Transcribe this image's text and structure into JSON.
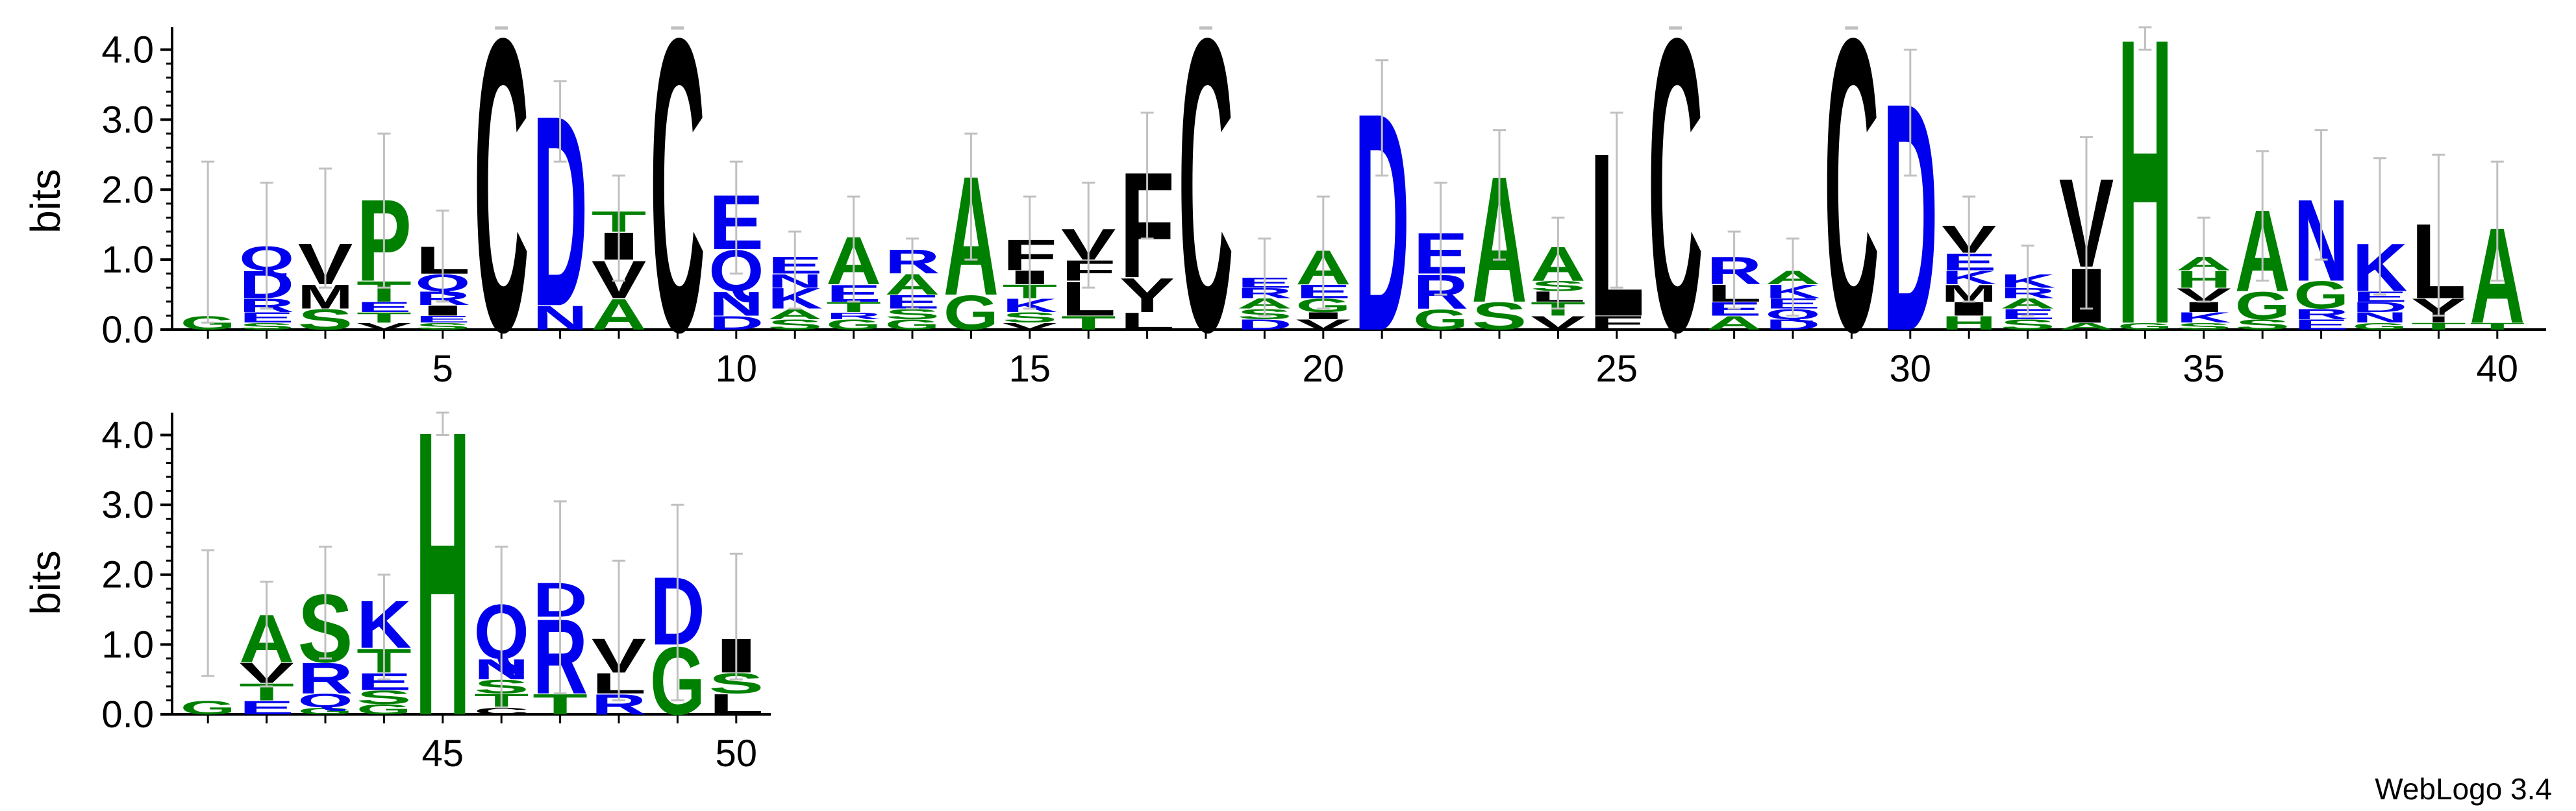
{
  "app": {
    "credit": "WebLogo 3.4"
  },
  "colors": {
    "blue": "#0000ee",
    "green": "#008000",
    "black": "#000000",
    "errorbar": "#c0c0c0"
  },
  "chart_data": [
    {
      "type": "sequence_logo",
      "ylabel": "bits",
      "ylim": [
        0,
        4.32
      ],
      "yticks": [
        "0.0",
        "1.0",
        "2.0",
        "3.0",
        "4.0"
      ],
      "xticks": [
        "5",
        "10",
        "15",
        "20",
        "25",
        "30",
        "35",
        "40"
      ],
      "positions": [
        {
          "pos": 1,
          "err": [
            0.1,
            2.4
          ],
          "letters": [
            [
              "G",
              0.2
            ]
          ]
        },
        {
          "pos": 2,
          "err": [
            0.3,
            2.1
          ],
          "letters": [
            [
              "S",
              0.1
            ],
            [
              "E",
              0.15
            ],
            [
              "R",
              0.2
            ],
            [
              "D",
              0.4
            ],
            [
              "Q",
              0.35
            ]
          ]
        },
        {
          "pos": 3,
          "err": [
            0.6,
            2.3
          ],
          "letters": [
            [
              "S",
              0.3
            ],
            [
              "M",
              0.35
            ],
            [
              "V",
              0.6
            ]
          ]
        },
        {
          "pos": 4,
          "err": [
            0.6,
            2.8
          ],
          "letters": [
            [
              "V",
              0.1
            ],
            [
              "T",
              0.15
            ],
            [
              "E",
              0.15
            ],
            [
              "T",
              0.3
            ],
            [
              "P",
              1.2
            ]
          ]
        },
        {
          "pos": 5,
          "err": [
            0.4,
            1.7
          ],
          "letters": [
            [
              "S",
              0.1
            ],
            [
              "E",
              0.1
            ],
            [
              "I",
              0.15
            ],
            [
              "R",
              0.2
            ],
            [
              "Q",
              0.25
            ],
            [
              "L",
              0.4
            ]
          ]
        },
        {
          "pos": 6,
          "err": [
            4.3,
            4.32
          ],
          "letters": [
            [
              "C",
              4.3
            ]
          ]
        },
        {
          "pos": 7,
          "err": [
            2.4,
            3.55
          ],
          "letters": [
            [
              "N",
              0.35
            ],
            [
              "D",
              2.8
            ]
          ]
        },
        {
          "pos": 8,
          "err": [
            0.7,
            2.2
          ],
          "letters": [
            [
              "A",
              0.45
            ],
            [
              "V",
              0.55
            ],
            [
              "I",
              0.4
            ],
            [
              "T",
              0.3
            ]
          ]
        },
        {
          "pos": 9,
          "err": [
            4.3,
            4.32
          ],
          "letters": [
            [
              "C",
              4.3
            ]
          ]
        },
        {
          "pos": 10,
          "err": [
            0.8,
            2.4
          ],
          "letters": [
            [
              "D",
              0.2
            ],
            [
              "N",
              0.35
            ],
            [
              "Q",
              0.6
            ],
            [
              "E",
              0.8
            ]
          ]
        },
        {
          "pos": 11,
          "err": [
            0.3,
            1.4
          ],
          "letters": [
            [
              "S",
              0.15
            ],
            [
              "A",
              0.15
            ],
            [
              "K",
              0.3
            ],
            [
              "N",
              0.2
            ],
            [
              "E",
              0.25
            ]
          ]
        },
        {
          "pos": 12,
          "err": [
            0.4,
            1.9
          ],
          "letters": [
            [
              "G",
              0.15
            ],
            [
              "R",
              0.1
            ],
            [
              "T",
              0.15
            ],
            [
              "E",
              0.25
            ],
            [
              "A",
              0.7
            ]
          ]
        },
        {
          "pos": 13,
          "err": [
            0.3,
            1.3
          ],
          "letters": [
            [
              "G",
              0.15
            ],
            [
              "S",
              0.15
            ],
            [
              "E",
              0.2
            ],
            [
              "A",
              0.3
            ],
            [
              "R",
              0.35
            ]
          ]
        },
        {
          "pos": 14,
          "err": [
            1.0,
            2.8
          ],
          "letters": [
            [
              "G",
              0.5
            ],
            [
              "A",
              1.75
            ]
          ]
        },
        {
          "pos": 15,
          "err": [
            0.3,
            1.9
          ],
          "letters": [
            [
              "V",
              0.1
            ],
            [
              "S",
              0.15
            ],
            [
              "K",
              0.2
            ],
            [
              "T",
              0.2
            ],
            [
              "I",
              0.2
            ],
            [
              "F",
              0.45
            ]
          ]
        },
        {
          "pos": 16,
          "err": [
            0.6,
            2.1
          ],
          "letters": [
            [
              "T",
              0.2
            ],
            [
              "L",
              0.5
            ],
            [
              "F",
              0.3
            ],
            [
              "V",
              0.45
            ]
          ]
        },
        {
          "pos": 17,
          "err": [
            1.3,
            3.1
          ],
          "letters": [
            [
              "L",
              0.25
            ],
            [
              "Y",
              0.5
            ],
            [
              "F",
              1.55
            ]
          ]
        },
        {
          "pos": 18,
          "err": [
            4.3,
            4.32
          ],
          "letters": [
            [
              "C",
              4.3
            ]
          ]
        },
        {
          "pos": 19,
          "err": [
            0.2,
            1.3
          ],
          "letters": [
            [
              "D",
              0.15
            ],
            [
              "S",
              0.15
            ],
            [
              "A",
              0.15
            ],
            [
              "R",
              0.15
            ],
            [
              "E",
              0.15
            ]
          ]
        },
        {
          "pos": 20,
          "err": [
            0.3,
            1.9
          ],
          "letters": [
            [
              "V",
              0.15
            ],
            [
              "I",
              0.1
            ],
            [
              "G",
              0.2
            ],
            [
              "E",
              0.2
            ],
            [
              "A",
              0.5
            ]
          ]
        },
        {
          "pos": 21,
          "err": [
            2.2,
            3.85
          ],
          "letters": [
            [
              "D",
              3.2
            ]
          ]
        },
        {
          "pos": 22,
          "err": [
            0.5,
            2.1
          ],
          "letters": [
            [
              "G",
              0.3
            ],
            [
              "R",
              0.5
            ],
            [
              "E",
              0.6
            ]
          ]
        },
        {
          "pos": 23,
          "err": [
            1.0,
            2.85
          ],
          "letters": [
            [
              "S",
              0.4
            ],
            [
              "A",
              1.85
            ]
          ]
        },
        {
          "pos": 24,
          "err": [
            0.3,
            1.6
          ],
          "letters": [
            [
              "V",
              0.2
            ],
            [
              "T",
              0.2
            ],
            [
              "L",
              0.15
            ],
            [
              "S",
              0.15
            ],
            [
              "A",
              0.5
            ]
          ]
        },
        {
          "pos": 25,
          "err": [
            0.6,
            3.1
          ],
          "letters": [
            [
              "F",
              0.2
            ],
            [
              "L",
              2.4
            ]
          ]
        },
        {
          "pos": 26,
          "err": [
            4.3,
            4.32
          ],
          "letters": [
            [
              "C",
              4.3
            ]
          ]
        },
        {
          "pos": 27,
          "err": [
            0.3,
            1.4
          ],
          "letters": [
            [
              "A",
              0.2
            ],
            [
              "E",
              0.2
            ],
            [
              "L",
              0.25
            ],
            [
              "R",
              0.4
            ]
          ]
        },
        {
          "pos": 28,
          "err": [
            0.2,
            1.3
          ],
          "letters": [
            [
              "D",
              0.15
            ],
            [
              "Q",
              0.15
            ],
            [
              "E",
              0.15
            ],
            [
              "K",
              0.2
            ],
            [
              "A",
              0.2
            ]
          ]
        },
        {
          "pos": 29,
          "err": [
            4.3,
            4.32
          ],
          "letters": [
            [
              "C",
              4.3
            ]
          ]
        },
        {
          "pos": 30,
          "err": [
            2.2,
            4.0
          ],
          "letters": [
            [
              "D",
              3.35
            ]
          ]
        },
        {
          "pos": 31,
          "err": [
            0.4,
            1.9
          ],
          "letters": [
            [
              "H",
              0.2
            ],
            [
              "I",
              0.2
            ],
            [
              "M",
              0.25
            ],
            [
              "K",
              0.2
            ],
            [
              "E",
              0.25
            ],
            [
              "V",
              0.4
            ]
          ]
        },
        {
          "pos": 32,
          "err": [
            0.2,
            1.2
          ],
          "letters": [
            [
              "S",
              0.15
            ],
            [
              "E",
              0.15
            ],
            [
              "A",
              0.15
            ],
            [
              "R",
              0.15
            ],
            [
              "K",
              0.2
            ]
          ]
        },
        {
          "pos": 33,
          "err": [
            0.3,
            2.75
          ],
          "letters": [
            [
              "A",
              0.1
            ],
            [
              "I",
              0.8
            ],
            [
              "V",
              1.3
            ]
          ]
        },
        {
          "pos": 34,
          "err": [
            4.0,
            4.32
          ],
          "letters": [
            [
              "G",
              0.1
            ],
            [
              "H",
              4.2
            ]
          ]
        },
        {
          "pos": 35,
          "err": [
            0.4,
            1.6
          ],
          "letters": [
            [
              "S",
              0.1
            ],
            [
              "K",
              0.15
            ],
            [
              "I",
              0.15
            ],
            [
              "V",
              0.2
            ],
            [
              "H",
              0.25
            ],
            [
              "A",
              0.2
            ]
          ]
        },
        {
          "pos": 36,
          "err": [
            0.7,
            2.55
          ],
          "letters": [
            [
              "S",
              0.15
            ],
            [
              "G",
              0.4
            ],
            [
              "A",
              1.2
            ]
          ]
        },
        {
          "pos": 37,
          "err": [
            1.0,
            2.85
          ],
          "letters": [
            [
              "E",
              0.15
            ],
            [
              "R",
              0.15
            ],
            [
              "G",
              0.4
            ],
            [
              "N",
              1.2
            ]
          ]
        },
        {
          "pos": 38,
          "err": [
            0.5,
            2.45
          ],
          "letters": [
            [
              "G",
              0.1
            ],
            [
              "N",
              0.15
            ],
            [
              "D",
              0.15
            ],
            [
              "E",
              0.15
            ],
            [
              "K",
              0.7
            ]
          ]
        },
        {
          "pos": 39,
          "err": [
            0.2,
            2.5
          ],
          "letters": [
            [
              "T",
              0.1
            ],
            [
              "Y",
              0.35
            ],
            [
              "L",
              1.1
            ]
          ]
        },
        {
          "pos": 40,
          "err": [
            0.7,
            2.4
          ],
          "letters": [
            [
              "T",
              0.1
            ],
            [
              "A",
              1.4
            ]
          ]
        },
        {
          "pos": 41,
          "err": [
            0.55,
            2.35
          ],
          "letters": [
            [
              "G",
              0.2
            ]
          ]
        },
        {
          "pos": 42,
          "err": [
            0.4,
            1.9
          ],
          "letters": [
            [
              "E",
              0.2
            ],
            [
              "T",
              0.25
            ],
            [
              "V",
              0.3
            ],
            [
              "A",
              0.7
            ]
          ]
        },
        {
          "pos": 43,
          "err": [
            0.8,
            2.4
          ],
          "letters": [
            [
              "G",
              0.1
            ],
            [
              "Q",
              0.2
            ],
            [
              "R",
              0.45
            ],
            [
              "S",
              1.0
            ]
          ]
        },
        {
          "pos": 44,
          "err": [
            0.5,
            2.0
          ],
          "letters": [
            [
              "G",
              0.15
            ],
            [
              "S",
              0.2
            ],
            [
              "E",
              0.25
            ],
            [
              "T",
              0.35
            ],
            [
              "K",
              0.7
            ]
          ]
        },
        {
          "pos": 45,
          "err": [
            4.0,
            4.32
          ],
          "letters": [
            [
              "H",
              4.2
            ]
          ]
        },
        {
          "pos": 46,
          "err": [
            0.1,
            2.4
          ],
          "letters": [
            [
              "C",
              0.1
            ],
            [
              "T",
              0.2
            ],
            [
              "S",
              0.2
            ],
            [
              "N",
              0.3
            ],
            [
              "Q",
              0.8
            ]
          ]
        },
        {
          "pos": 47,
          "err": [
            0.3,
            3.05
          ],
          "letters": [
            [
              "T",
              0.3
            ],
            [
              "R",
              1.1
            ],
            [
              "D",
              0.5
            ]
          ]
        },
        {
          "pos": 48,
          "err": [
            0.2,
            2.2
          ],
          "letters": [
            [
              "R",
              0.3
            ],
            [
              "L",
              0.3
            ],
            [
              "V",
              0.5
            ]
          ]
        },
        {
          "pos": 49,
          "err": [
            0.2,
            3.0
          ],
          "letters": [
            [
              "G",
              1.0
            ],
            [
              "D",
              1.0
            ]
          ]
        },
        {
          "pos": 50,
          "err": [
            0.5,
            2.3
          ],
          "letters": [
            [
              "L",
              0.3
            ],
            [
              "S",
              0.3
            ],
            [
              "I",
              0.5
            ]
          ]
        }
      ]
    },
    {
      "type": "sequence_logo",
      "ylabel": "bits",
      "ylim": [
        0,
        4.32
      ],
      "yticks": [
        "0.0",
        "1.0",
        "2.0",
        "3.0",
        "4.0"
      ],
      "xticks": [
        "45",
        "50"
      ]
    }
  ]
}
